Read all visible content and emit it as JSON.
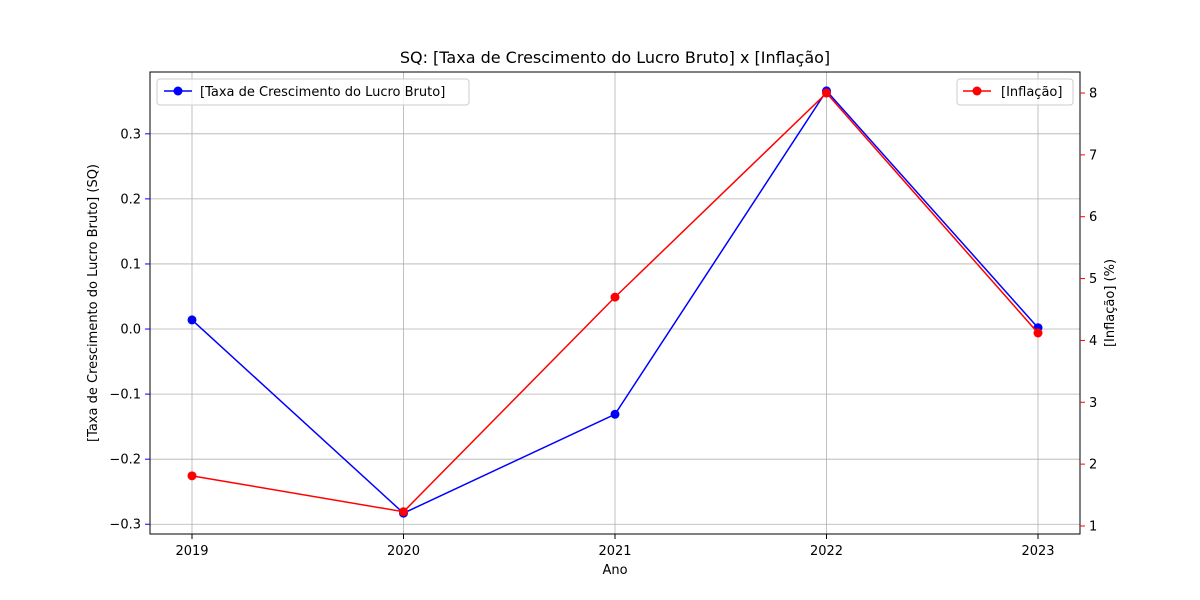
{
  "chart_data": {
    "type": "line",
    "title": "SQ: [Taxa de Crescimento do Lucro Bruto] x [Inflação]",
    "xlabel": "Ano",
    "x": [
      "2019",
      "2020",
      "2021",
      "2022",
      "2023"
    ],
    "y_left": {
      "label": "[Taxa de Crescimento do Lucro Bruto] (SQ)",
      "color": "#0000ff",
      "ylim": [
        -0.315,
        0.395
      ],
      "ticks": [
        -0.3,
        -0.2,
        -0.1,
        0.0,
        0.1,
        0.2,
        0.3
      ],
      "tick_labels": [
        "−0.3",
        "−0.2",
        "−0.1",
        "0.0",
        "0.1",
        "0.2",
        "0.3"
      ]
    },
    "y_right": {
      "label": "[Inflação] (%)",
      "color": "#ff0000",
      "ylim": [
        0.87,
        8.34
      ],
      "ticks": [
        1,
        2,
        3,
        4,
        5,
        6,
        7,
        8
      ],
      "tick_labels": [
        "1",
        "2",
        "3",
        "4",
        "5",
        "6",
        "7",
        "8"
      ]
    },
    "series": [
      {
        "name": "[Taxa de Crescimento do Lucro Bruto]",
        "axis": "left",
        "color": "#0000ff",
        "marker": "circle",
        "values": [
          0.014,
          -0.283,
          -0.131,
          0.366,
          0.002
        ]
      },
      {
        "name": "[Inflação]",
        "axis": "right",
        "color": "#ff0000",
        "marker": "circle",
        "values": [
          1.81,
          1.23,
          4.7,
          8.0,
          4.12
        ]
      }
    ],
    "grid": true,
    "legends": {
      "left_series": "upper-left",
      "right_series": "upper-right"
    }
  }
}
